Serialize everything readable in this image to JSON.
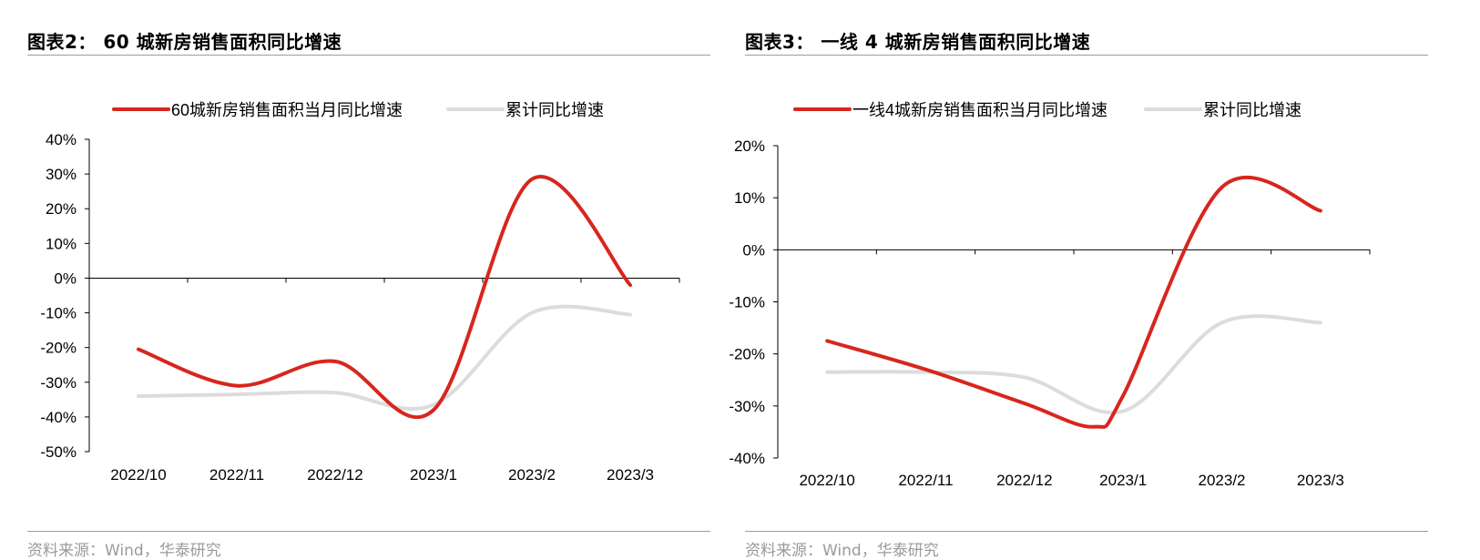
{
  "left": {
    "title": "图表2：  60 城新房销售面积同比增速",
    "source": "资料来源：Wind，华泰研究"
  },
  "right": {
    "title": "图表3：  一线 4 城新房销售面积同比增速",
    "source": "资料来源：Wind，华泰研究"
  },
  "colors": {
    "red": "#d7261e",
    "gray": "#dcdcdc",
    "rule": "#8aa2b8"
  },
  "chart_data": [
    {
      "type": "line",
      "categories": [
        "2022/10",
        "2022/11",
        "2022/12",
        "2023/1",
        "2023/2",
        "2023/3"
      ],
      "series": [
        {
          "name": "60城新房销售面积当月同比增速",
          "color": "#d7261e",
          "x": [
            0,
            1,
            2,
            3,
            4,
            5
          ],
          "values": [
            -20.5,
            -31.0,
            -24.0,
            -38.0,
            28.5,
            -2.0
          ]
        },
        {
          "name": "累计同比增速",
          "color": "#dcdcdc",
          "x": [
            0,
            1,
            2,
            3,
            4,
            5
          ],
          "values": [
            -34.0,
            -33.5,
            -33.0,
            -36.5,
            -10.0,
            -10.5
          ]
        }
      ],
      "yticks": [
        "40%",
        "30%",
        "20%",
        "10%",
        "0%",
        "-10%",
        "-20%",
        "-30%",
        "-40%",
        "-50%"
      ],
      "ylim": [
        -50,
        40
      ],
      "legend_position": "top"
    },
    {
      "type": "line",
      "categories": [
        "2022/10",
        "2022/11",
        "2022/12",
        "2023/1",
        "2023/2",
        "2023/3"
      ],
      "series": [
        {
          "name": "一线4城新房销售面积当月同比增速",
          "color": "#d7261e",
          "x": [
            0,
            1,
            2,
            2.7,
            3,
            4,
            5
          ],
          "values": [
            -17.5,
            -23.0,
            -29.5,
            -34.0,
            -28.0,
            12.0,
            7.5
          ]
        },
        {
          "name": "累计同比增速",
          "color": "#dcdcdc",
          "x": [
            0,
            1,
            2,
            3,
            4,
            5
          ],
          "values": [
            -23.5,
            -23.5,
            -24.5,
            -31.0,
            -14.0,
            -14.0
          ]
        }
      ],
      "yticks": [
        "20%",
        "10%",
        "0%",
        "-10%",
        "-20%",
        "-30%",
        "-40%"
      ],
      "ylim": [
        -40,
        20
      ],
      "legend_position": "top"
    }
  ]
}
